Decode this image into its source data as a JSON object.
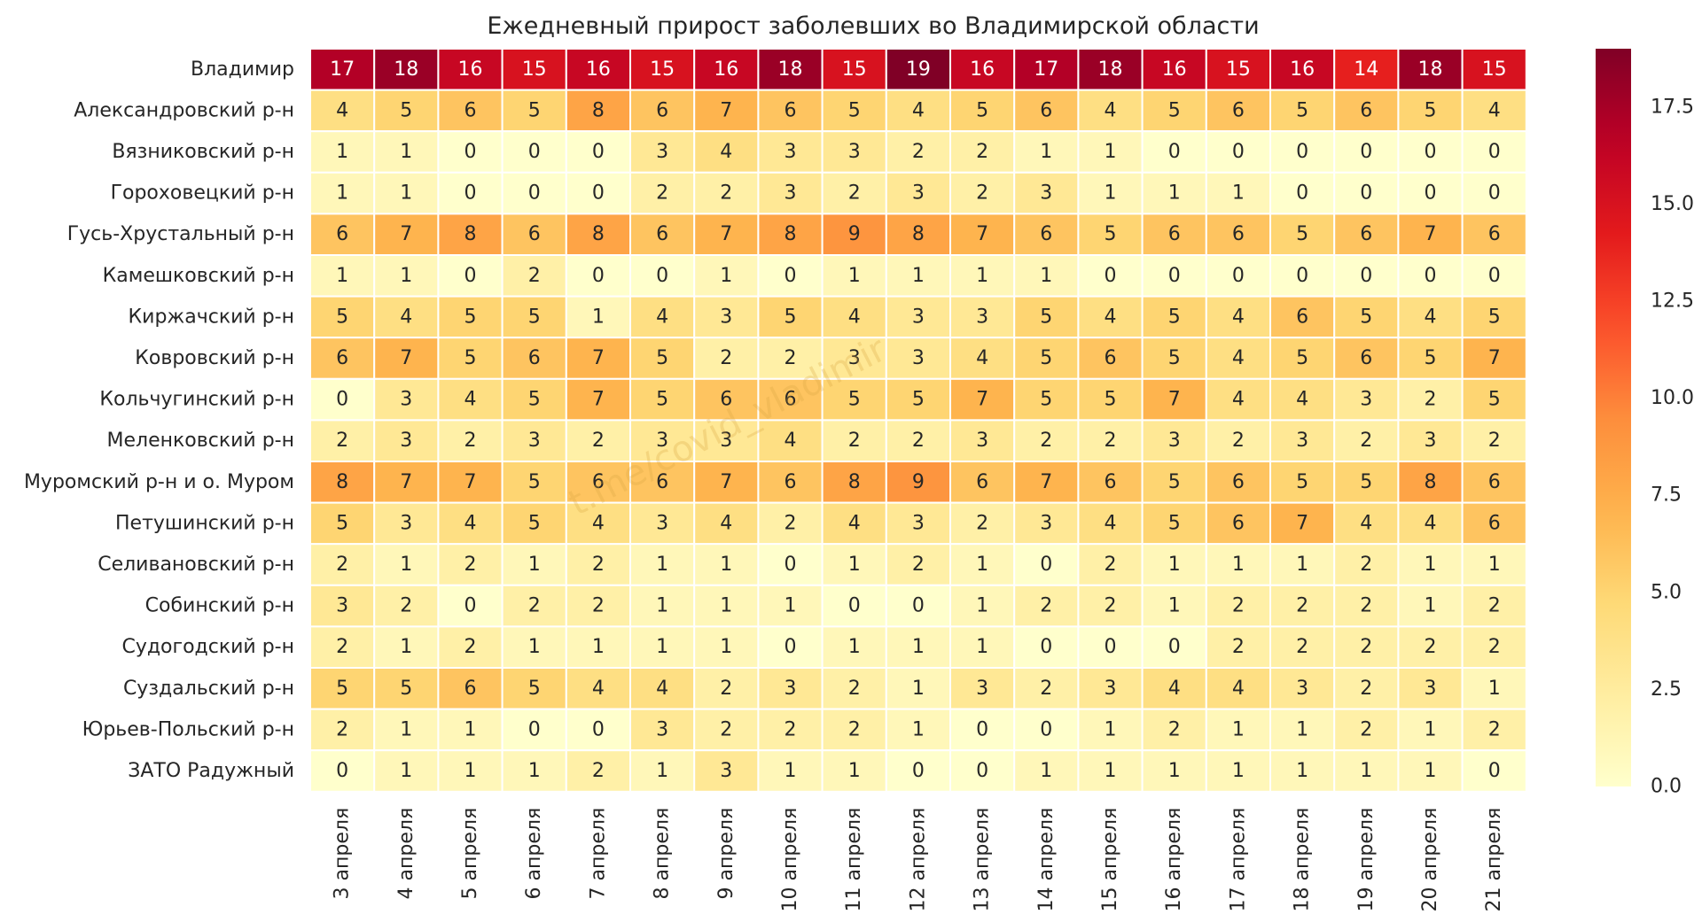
{
  "chart_data": {
    "type": "heatmap",
    "title": "Ежедневный прирост заболевших во Владимирской области",
    "xlabel": "",
    "ylabel": "",
    "x": [
      "3 апреля",
      "4 апреля",
      "5 апреля",
      "6 апреля",
      "7 апреля",
      "8 апреля",
      "9 апреля",
      "10 апреля",
      "11 апреля",
      "12 апреля",
      "13 апреля",
      "14 апреля",
      "15 апреля",
      "16 апреля",
      "17 апреля",
      "18 апреля",
      "19 апреля",
      "20 апреля",
      "21 апреля"
    ],
    "y": [
      "Владимир",
      "Александровский р-н",
      "Вязниковский р-н",
      "Гороховецкий р-н",
      "Гусь-Хрустальный р-н",
      "Камешковский р-н",
      "Киржачский р-н",
      "Ковровский р-н",
      "Кольчугинский р-н",
      "Меленковский р-н",
      "Муромский р-н и о. Муром",
      "Петушинский р-н",
      "Селивановский р-н",
      "Собинский р-н",
      "Судогодский р-н",
      "Суздальский р-н",
      "Юрьев-Польский р-н",
      "ЗАТО Радужный"
    ],
    "values": [
      [
        17,
        18,
        16,
        15,
        16,
        15,
        16,
        18,
        15,
        19,
        16,
        17,
        18,
        16,
        15,
        16,
        14,
        18,
        15
      ],
      [
        4,
        5,
        6,
        5,
        8,
        6,
        7,
        6,
        5,
        4,
        5,
        6,
        4,
        5,
        6,
        5,
        6,
        5,
        4
      ],
      [
        1,
        1,
        0,
        0,
        0,
        3,
        4,
        3,
        3,
        2,
        2,
        1,
        1,
        0,
        0,
        0,
        0,
        0,
        0
      ],
      [
        1,
        1,
        0,
        0,
        0,
        2,
        2,
        3,
        2,
        3,
        2,
        3,
        1,
        1,
        1,
        0,
        0,
        0,
        0
      ],
      [
        6,
        7,
        8,
        6,
        8,
        6,
        7,
        8,
        9,
        8,
        7,
        6,
        5,
        6,
        6,
        5,
        6,
        7,
        6
      ],
      [
        1,
        1,
        0,
        2,
        0,
        0,
        1,
        0,
        1,
        1,
        1,
        1,
        0,
        0,
        0,
        0,
        0,
        0,
        0
      ],
      [
        5,
        4,
        5,
        5,
        1,
        4,
        3,
        5,
        4,
        3,
        3,
        5,
        4,
        5,
        4,
        6,
        5,
        4,
        5
      ],
      [
        6,
        7,
        5,
        6,
        7,
        5,
        2,
        2,
        3,
        3,
        4,
        5,
        6,
        5,
        4,
        5,
        6,
        5,
        7
      ],
      [
        0,
        3,
        4,
        5,
        7,
        5,
        6,
        6,
        5,
        5,
        7,
        5,
        5,
        7,
        4,
        4,
        3,
        2,
        5
      ],
      [
        2,
        3,
        2,
        3,
        2,
        3,
        3,
        4,
        2,
        2,
        3,
        2,
        2,
        3,
        2,
        3,
        2,
        3,
        2
      ],
      [
        8,
        7,
        7,
        5,
        6,
        6,
        7,
        6,
        8,
        9,
        6,
        7,
        6,
        5,
        6,
        5,
        5,
        8,
        6
      ],
      [
        5,
        3,
        4,
        5,
        4,
        3,
        4,
        2,
        4,
        3,
        2,
        3,
        4,
        5,
        6,
        7,
        4,
        4,
        6
      ],
      [
        2,
        1,
        2,
        1,
        2,
        1,
        1,
        0,
        1,
        2,
        1,
        0,
        2,
        1,
        1,
        1,
        2,
        1,
        1
      ],
      [
        3,
        2,
        0,
        2,
        2,
        1,
        1,
        1,
        0,
        0,
        1,
        2,
        2,
        1,
        2,
        2,
        2,
        1,
        2
      ],
      [
        2,
        1,
        2,
        1,
        1,
        1,
        1,
        0,
        1,
        1,
        1,
        0,
        0,
        0,
        2,
        2,
        2,
        2,
        2
      ],
      [
        5,
        5,
        6,
        5,
        4,
        4,
        2,
        3,
        2,
        1,
        3,
        2,
        3,
        4,
        4,
        3,
        2,
        3,
        1
      ],
      [
        2,
        1,
        1,
        0,
        0,
        3,
        2,
        2,
        2,
        1,
        0,
        0,
        1,
        2,
        1,
        1,
        2,
        1,
        2
      ],
      [
        0,
        1,
        1,
        1,
        2,
        1,
        3,
        1,
        1,
        0,
        0,
        1,
        1,
        1,
        1,
        1,
        1,
        1,
        0
      ]
    ],
    "colorscale": "YlOrRd",
    "vmin": 0,
    "vmax": 19,
    "colorbar_ticks": [
      "0.0",
      "2.5",
      "5.0",
      "7.5",
      "10.0",
      "12.5",
      "15.0",
      "17.5"
    ],
    "colorbar_tick_values": [
      0,
      2.5,
      5,
      7.5,
      10,
      12.5,
      15,
      17.5
    ],
    "watermark": "t.me/covid_vladimir"
  }
}
